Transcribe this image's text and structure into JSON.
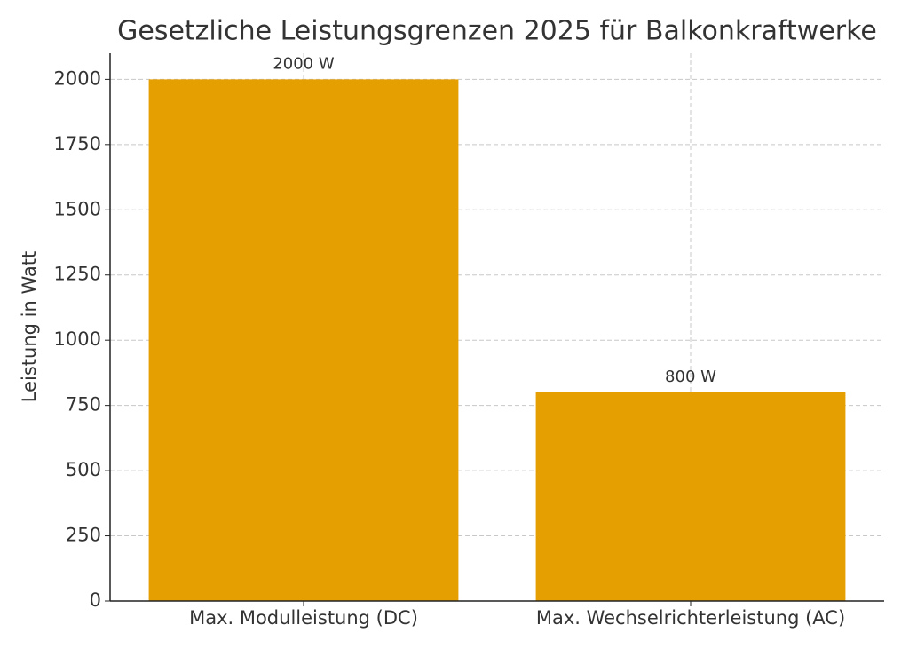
{
  "chart_data": {
    "type": "bar",
    "title": "Gesetzliche Leistungsgrenzen 2025 für Balkonkraftwerke",
    "y_label": "Leistung in Watt",
    "categories": [
      "Max. Modulleistung (DC)",
      "Max. Wechselrichterleistung (AC)"
    ],
    "values": [
      2000,
      800
    ],
    "value_labels": [
      "2000 W",
      "800 W"
    ],
    "color": "#e69f00",
    "ylim": [
      0,
      2100
    ],
    "yticks": [
      0,
      250,
      500,
      750,
      1000,
      1250,
      1500,
      1750,
      2000
    ],
    "grid": true
  }
}
